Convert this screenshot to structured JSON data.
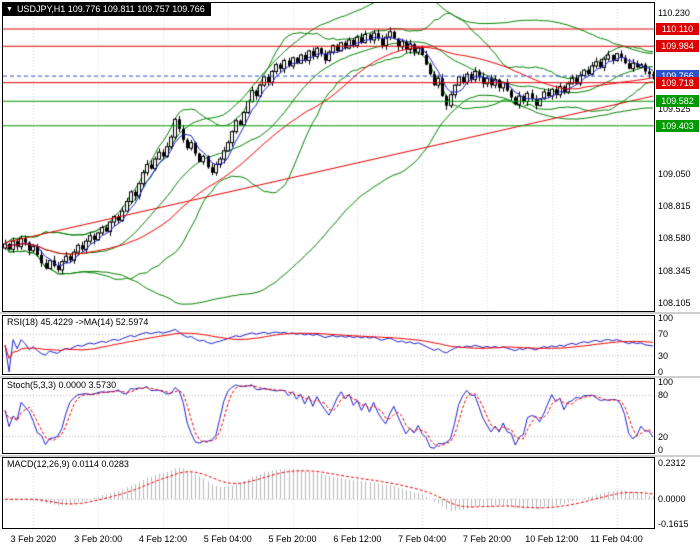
{
  "icons": {
    "dropdown": "▼"
  },
  "chart_data": {
    "type": "candlestick",
    "symbol": "USDJPY",
    "timeframe": "H1",
    "title_line": "USDJPY,H1 109.776 109.811 109.757 109.766",
    "quote": {
      "open": 109.776,
      "high": 109.811,
      "low": 109.757,
      "close": 109.766
    },
    "x_labels": [
      "3 Feb 2020",
      "3 Feb 20:00",
      "4 Feb 12:00",
      "5 Feb 04:00",
      "5 Feb 20:00",
      "6 Feb 12:00",
      "7 Feb 04:00",
      "7 Feb 20:00",
      "10 Feb 12:00",
      "11 Feb 04:00"
    ],
    "x_label_indices": [
      7,
      23,
      39,
      55,
      71,
      87,
      103,
      119,
      135,
      151
    ],
    "main_panel": {
      "ylim": [
        108.05,
        110.3
      ],
      "y_ticks": [
        {
          "v": 110.23,
          "t": "110.230"
        },
        {
          "v": 109.525,
          "t": "109.525"
        },
        {
          "v": 109.05,
          "t": "109.050"
        },
        {
          "v": 108.815,
          "t": "108.815"
        },
        {
          "v": 108.58,
          "t": "108.580"
        },
        {
          "v": 108.345,
          "t": "108.345"
        },
        {
          "v": 108.105,
          "t": "108.105"
        }
      ],
      "levels": [
        {
          "v": 110.11,
          "t": "110.110",
          "color": "#dd0000",
          "style": "solid"
        },
        {
          "v": 109.984,
          "t": "109.984",
          "color": "#dd0000",
          "style": "solid"
        },
        {
          "v": 109.766,
          "t": "109.766",
          "color": "#2952cc",
          "style": "dashed"
        },
        {
          "v": 109.718,
          "t": "109.718",
          "color": "#dd0000",
          "style": "solid"
        },
        {
          "v": 109.582,
          "t": "109.582",
          "color": "#009900",
          "style": "solid"
        },
        {
          "v": 109.403,
          "t": "109.403",
          "color": "#009900",
          "style": "solid"
        }
      ],
      "trendline": {
        "x1": 0,
        "v1": 108.55,
        "x2": 160,
        "v2": 109.62,
        "color": "#dd0000"
      },
      "overlays": {
        "ma_fast": {
          "period": 5,
          "color": "#2020cc"
        },
        "ma_slow": {
          "period": 34,
          "color": "#ee0000"
        },
        "bb_fast": {
          "period": 20,
          "dev": 2,
          "color": "#008000"
        },
        "bb_slow": {
          "period": 55,
          "dev": 2,
          "color": "#008000"
        }
      },
      "closes": [
        108.54,
        108.5,
        108.56,
        108.52,
        108.58,
        108.55,
        108.49,
        108.52,
        108.46,
        108.4,
        108.36,
        108.42,
        108.38,
        108.35,
        108.41,
        108.45,
        108.42,
        108.48,
        108.53,
        108.5,
        108.56,
        108.6,
        108.57,
        108.62,
        108.66,
        108.63,
        108.7,
        108.74,
        108.71,
        108.78,
        108.85,
        108.92,
        108.89,
        108.98,
        109.06,
        109.12,
        109.09,
        109.16,
        109.21,
        109.18,
        109.25,
        109.32,
        109.45,
        109.38,
        109.3,
        109.24,
        109.28,
        109.2,
        109.14,
        109.18,
        109.1,
        109.06,
        109.12,
        109.16,
        109.22,
        109.28,
        109.36,
        109.44,
        109.41,
        109.5,
        109.58,
        109.66,
        109.62,
        109.7,
        109.76,
        109.72,
        109.8,
        109.85,
        109.82,
        109.88,
        109.84,
        109.9,
        109.86,
        109.92,
        109.88,
        109.95,
        109.91,
        109.97,
        109.93,
        109.88,
        109.94,
        109.99,
        109.95,
        110.01,
        109.97,
        110.03,
        109.99,
        110.05,
        110.01,
        110.07,
        110.03,
        110.08,
        110.04,
        109.99,
        110.05,
        110.09,
        110.04,
        109.98,
        110.02,
        109.96,
        110.0,
        109.94,
        109.97,
        109.92,
        109.85,
        109.78,
        109.7,
        109.75,
        109.62,
        109.55,
        109.63,
        109.7,
        109.76,
        109.72,
        109.78,
        109.74,
        109.8,
        109.76,
        109.71,
        109.75,
        109.7,
        109.74,
        109.68,
        109.72,
        109.66,
        109.61,
        109.56,
        109.62,
        109.58,
        109.64,
        109.6,
        109.55,
        109.6,
        109.65,
        109.62,
        109.67,
        109.63,
        109.69,
        109.65,
        109.71,
        109.75,
        109.71,
        109.77,
        109.81,
        109.78,
        109.84,
        109.87,
        109.83,
        109.89,
        109.92,
        109.88,
        109.93,
        109.9,
        109.86,
        109.82,
        109.86,
        109.83,
        109.85,
        109.8,
        109.78,
        109.766
      ]
    },
    "rsi_panel": {
      "label": "RSI(18) 45.4229 ->MA(14) 52.5974",
      "period": 18,
      "ma_period": 14,
      "ylim": [
        -4,
        104
      ],
      "ticks": [
        {
          "v": 100,
          "t": "100"
        },
        {
          "v": 70,
          "t": "70"
        },
        {
          "v": 30,
          "t": "30"
        },
        {
          "v": 0,
          "t": "0"
        }
      ],
      "guides": [
        70,
        30
      ],
      "line_color": "#2020cc",
      "ma_color": "#ee0000"
    },
    "stoch_panel": {
      "label": "Stoch(5,3,3) 0.0000 3.5730",
      "k": 5,
      "d": 3,
      "slowing": 3,
      "ylim": [
        -4,
        104
      ],
      "ticks": [
        {
          "v": 100,
          "t": "100"
        },
        {
          "v": 80,
          "t": "80"
        },
        {
          "v": 20,
          "t": "20"
        },
        {
          "v": 0,
          "t": "0"
        }
      ],
      "guides": [
        80,
        20
      ],
      "k_color": "#2020cc",
      "d_color": "#ee0000"
    },
    "macd_panel": {
      "label": "MACD(12,26,9) 0.0114 0.0283",
      "fast": 12,
      "slow": 26,
      "signal": 9,
      "ylim": [
        -0.185,
        0.265
      ],
      "ticks": [
        {
          "v": 0.2312,
          "t": "0.2312"
        },
        {
          "v": 0,
          "t": "0.0000"
        },
        {
          "v": -0.1615,
          "t": "-0.1615"
        }
      ],
      "guides": [
        0
      ],
      "hist_color": "#b8b8b8",
      "signal_color": "#ee0000"
    }
  }
}
